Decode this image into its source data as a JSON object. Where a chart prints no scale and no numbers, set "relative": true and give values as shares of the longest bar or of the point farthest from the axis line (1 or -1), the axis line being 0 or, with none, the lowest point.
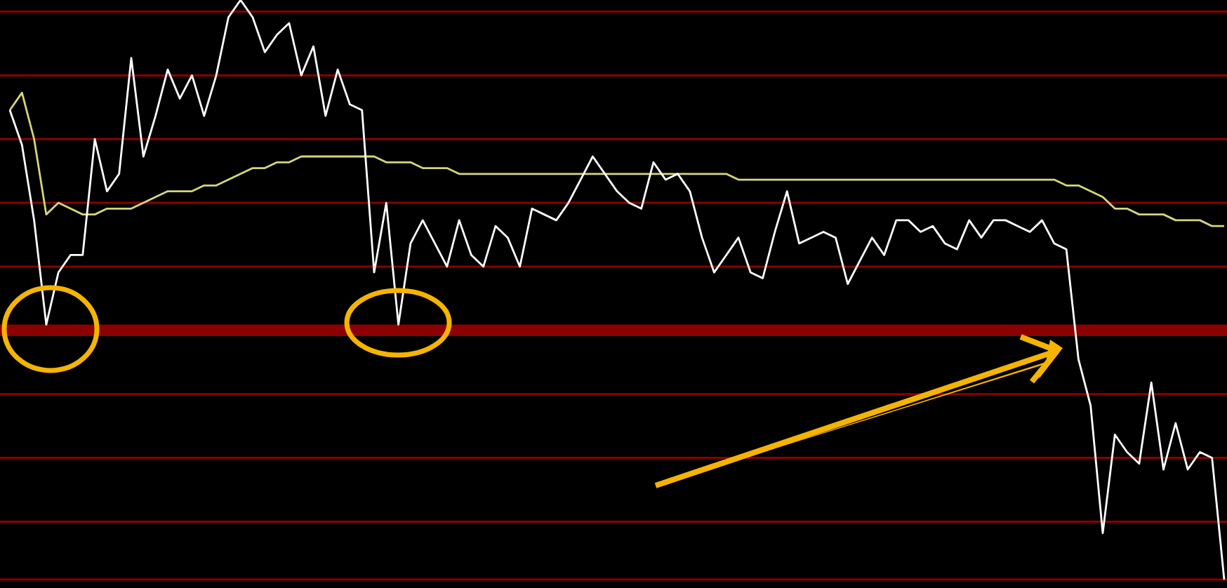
{
  "chart_data": {
    "type": "line",
    "relative": true,
    "legend": false,
    "marker": "none",
    "line_style": "solid",
    "ref_lines": [
      {
        "axis": "y",
        "value": 0.98,
        "color": "#8b0000"
      },
      {
        "axis": "y",
        "value": 0.87,
        "color": "#8b0000"
      },
      {
        "axis": "y",
        "value": 0.76,
        "color": "#8b0000"
      },
      {
        "axis": "y",
        "value": 0.65,
        "color": "#8b0000"
      },
      {
        "axis": "y",
        "value": 0.54,
        "color": "#8b0000"
      },
      {
        "axis": "y",
        "value": 0.32,
        "color": "#8b0000"
      },
      {
        "axis": "y",
        "value": 0.21,
        "color": "#8b0000"
      },
      {
        "axis": "y",
        "value": 0.1,
        "color": "#8b0000"
      },
      {
        "axis": "y",
        "value": 0,
        "color": "#8b0000"
      }
    ],
    "bands": [
      {
        "axis": "y",
        "from": 0.42,
        "to": 0.44,
        "color": "#8b0000"
      }
    ],
    "categories": [
      null,
      null,
      null,
      null,
      null,
      null,
      null,
      null,
      null,
      null,
      null,
      null,
      null,
      null,
      null,
      null,
      null,
      null,
      null,
      null,
      null,
      null,
      null,
      null,
      null,
      null,
      null,
      null,
      null,
      null,
      null,
      null,
      null,
      null,
      null,
      null,
      null,
      null,
      null,
      null,
      null,
      null,
      null,
      null,
      null,
      null,
      null,
      null,
      null,
      null,
      null,
      null,
      null,
      null,
      null,
      null,
      null,
      null,
      null,
      null,
      null,
      null,
      null,
      null,
      null,
      null,
      null,
      null,
      null,
      null,
      null,
      null,
      null,
      null,
      null,
      null,
      null,
      null,
      null,
      null,
      null,
      null,
      null,
      null,
      null,
      null,
      null,
      null,
      null,
      null,
      null,
      null,
      null,
      null,
      null,
      null,
      null,
      null,
      null,
      null,
      null
    ],
    "series": [
      {
        "color": "#ffffff",
        "values": [
          0.81,
          0.75,
          0.62,
          0.44,
          0.53,
          0.56,
          0.56,
          0.76,
          0.67,
          0.7,
          0.9,
          0.73,
          0.8,
          0.88,
          0.83,
          0.87,
          0.8,
          0.87,
          0.97,
          1,
          0.97,
          0.91,
          0.94,
          0.96,
          0.87,
          0.92,
          0.8,
          0.88,
          0.82,
          0.81,
          0.53,
          0.65,
          0.44,
          0.58,
          0.62,
          0.58,
          0.54,
          0.62,
          0.56,
          0.54,
          0.61,
          0.59,
          0.54,
          0.64,
          0.63,
          0.62,
          0.65,
          0.69,
          0.73,
          0.7,
          0.67,
          0.65,
          0.64,
          0.72,
          0.69,
          0.7,
          0.67,
          0.59,
          0.53,
          0.56,
          0.59,
          0.53,
          0.52,
          0.6,
          0.67,
          0.58,
          0.59,
          0.6,
          0.59,
          0.51,
          0.55,
          0.59,
          0.56,
          0.62,
          0.62,
          0.6,
          0.61,
          0.58,
          0.57,
          0.62,
          0.59,
          0.62,
          0.62,
          0.61,
          0.6,
          0.62,
          0.58,
          0.57,
          0.38,
          0.3,
          0.08,
          0.25,
          0.22,
          0.2,
          0.34,
          0.19,
          0.27,
          0.19,
          0.22,
          0.21,
          0
        ]
      },
      {
        "color": "#d6d67a",
        "values": [
          0.81,
          0.84,
          0.76,
          0.63,
          0.65,
          0.64,
          0.63,
          0.63,
          0.64,
          0.64,
          0.64,
          0.65,
          0.66,
          0.67,
          0.67,
          0.67,
          0.68,
          0.68,
          0.69,
          0.7,
          0.71,
          0.71,
          0.72,
          0.72,
          0.73,
          0.73,
          0.73,
          0.73,
          0.73,
          0.73,
          0.73,
          0.72,
          0.72,
          0.72,
          0.71,
          0.71,
          0.71,
          0.7,
          0.7,
          0.7,
          0.7,
          0.7,
          0.7,
          0.7,
          0.7,
          0.7,
          0.7,
          0.7,
          0.7,
          0.7,
          0.7,
          0.7,
          0.7,
          0.7,
          0.7,
          0.7,
          0.7,
          0.7,
          0.7,
          0.7,
          0.69,
          0.69,
          0.69,
          0.69,
          0.69,
          0.69,
          0.69,
          0.69,
          0.69,
          0.69,
          0.69,
          0.69,
          0.69,
          0.69,
          0.69,
          0.69,
          0.69,
          0.69,
          0.69,
          0.69,
          0.69,
          0.69,
          0.69,
          0.69,
          0.69,
          0.69,
          0.69,
          0.68,
          0.68,
          0.67,
          0.66,
          0.64,
          0.64,
          0.63,
          0.63,
          0.63,
          0.62,
          0.62,
          0.62,
          0.61,
          0.61
        ]
      }
    ]
  }
}
